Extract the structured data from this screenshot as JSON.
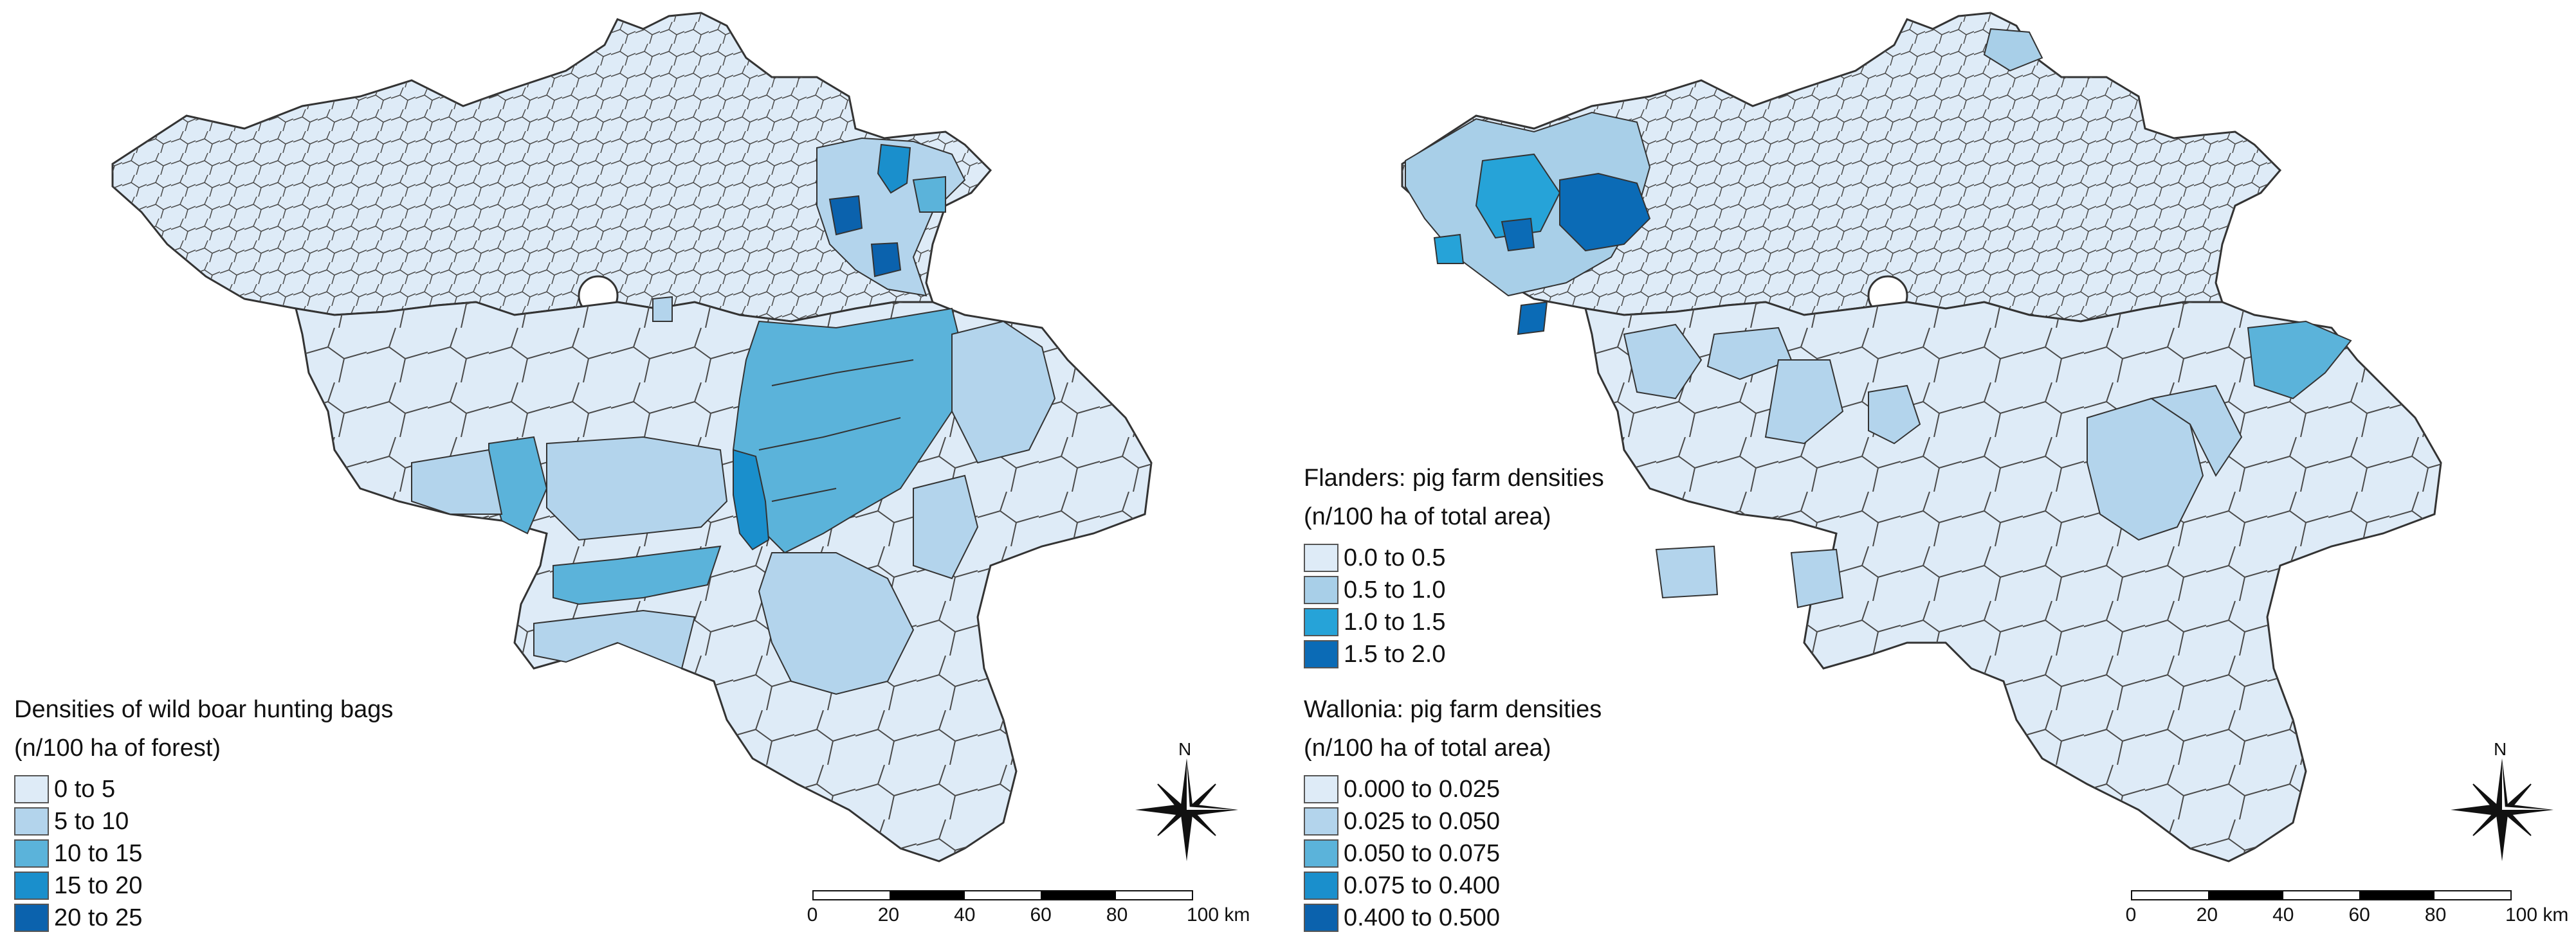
{
  "left_map": {
    "legend": {
      "title_line1": "Densities of wild boar hunting bags",
      "title_line2": "(n/100 ha of forest)",
      "classes": [
        {
          "label": "0 to 5",
          "color": "#deebf7"
        },
        {
          "label": "5 to 10",
          "color": "#b3d4ec"
        },
        {
          "label": "10 to 15",
          "color": "#5bb3da"
        },
        {
          "label": "15 to 20",
          "color": "#1a8fcc"
        },
        {
          "label": "20 to 25",
          "color": "#0b62ad"
        }
      ]
    },
    "scale": {
      "ticks": [
        "0",
        "20",
        "40",
        "60",
        "80",
        "100 km"
      ]
    },
    "north_label": "N"
  },
  "right_map": {
    "legend_flanders": {
      "title_line1": "Flanders: pig farm densities",
      "title_line2": "(n/100 ha of total area)",
      "classes": [
        {
          "label": "0.0 to 0.5",
          "color": "#deebf7"
        },
        {
          "label": "0.5 to 1.0",
          "color": "#a8cfe8"
        },
        {
          "label": "1.0 to 1.5",
          "color": "#26a3d8"
        },
        {
          "label": "1.5 to 2.0",
          "color": "#0b6bb6"
        }
      ]
    },
    "legend_wallonia": {
      "title_line1": "Wallonia: pig farm densities",
      "title_line2": "(n/100 ha of total area)",
      "classes": [
        {
          "label": "0.000 to 0.025",
          "color": "#deebf7"
        },
        {
          "label": "0.025 to 0.050",
          "color": "#b3d4ec"
        },
        {
          "label": "0.050 to 0.075",
          "color": "#5bb3da"
        },
        {
          "label": "0.075 to 0.400",
          "color": "#1a8fcc"
        },
        {
          "label": "0.400 to 0.500",
          "color": "#0b62ad"
        }
      ]
    },
    "scale": {
      "ticks": [
        "0",
        "20",
        "40",
        "60",
        "80",
        "100 km"
      ]
    },
    "north_label": "N"
  },
  "colors": {
    "border": "#4a4a4a",
    "outline": "#333333",
    "base_fill": "#deebf7"
  }
}
